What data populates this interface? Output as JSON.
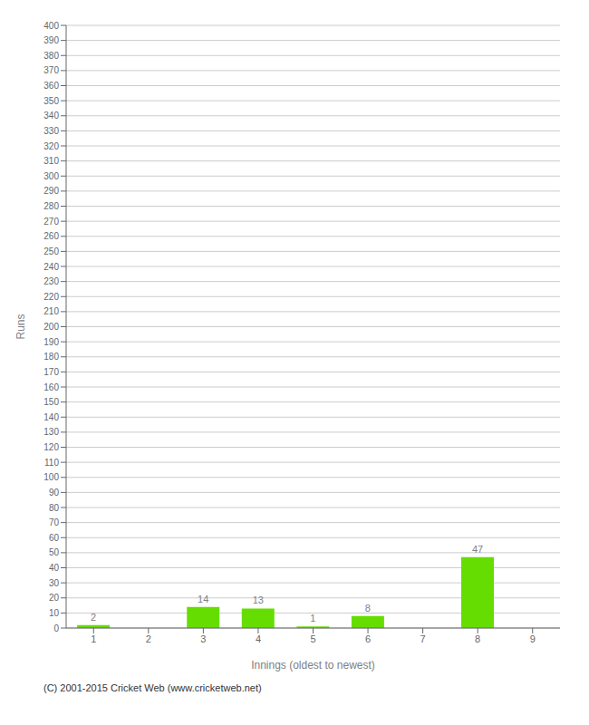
{
  "chart_data": {
    "type": "bar",
    "categories": [
      "1",
      "2",
      "3",
      "4",
      "5",
      "6",
      "7",
      "8",
      "9"
    ],
    "values": [
      2,
      0,
      14,
      13,
      1,
      8,
      0,
      47,
      0
    ],
    "color": "#66dd00",
    "xlabel": "Innings (oldest to newest)",
    "ylabel": "Runs",
    "ylim": [
      0,
      400
    ],
    "yticks": [
      0,
      10,
      20,
      30,
      40,
      50,
      60,
      70,
      80,
      90,
      100,
      110,
      120,
      130,
      140,
      150,
      160,
      170,
      180,
      190,
      200,
      210,
      220,
      230,
      240,
      250,
      260,
      270,
      280,
      290,
      300,
      310,
      320,
      330,
      340,
      350,
      360,
      370,
      380,
      390,
      400
    ],
    "grid": true,
    "data_labels": true,
    "annotations": [
      "(C) 2001-2015 Cricket Web (www.cricketweb.net)"
    ]
  }
}
